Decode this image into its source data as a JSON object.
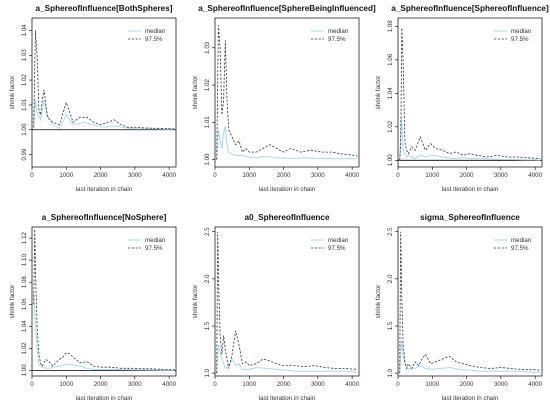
{
  "colors": {
    "median": "#a9d8ef",
    "q975": "#333333",
    "refline": "#000000",
    "frame": "#000000"
  },
  "chart_data": [
    {
      "type": "line",
      "title": "a_SphereofInfluence[BothSpheres]",
      "xlabel": "last iteration in chain",
      "ylabel": "shrink factor",
      "xlim": [
        0,
        4200
      ],
      "ylim": [
        0.985,
        1.045
      ],
      "xticks": [
        0,
        1000,
        2000,
        3000,
        4000
      ],
      "yticks": [
        0.99,
        1.0,
        1.01,
        1.02,
        1.03,
        1.04
      ],
      "ytick_labels": [
        "0.99",
        "1.00",
        "1.01",
        "1.02",
        "1.03",
        "1.04"
      ],
      "refline": 1.0,
      "legend": [
        "median",
        "97.5%"
      ],
      "series": [
        {
          "name": "median",
          "x": [
            50,
            100,
            150,
            250,
            350,
            450,
            600,
            800,
            1000,
            1200,
            1500,
            1800,
            2100,
            2400,
            2700,
            3000,
            3300,
            3600,
            3900,
            4150
          ],
          "y": [
            1.0005,
            1.012,
            1.007,
            1.004,
            1.012,
            1.006,
            1.002,
            1.0005,
            1.006,
            1.002,
            1.003,
            1.002,
            1.001,
            1.0015,
            1.0008,
            1.0004,
            1.0003,
            1.0003,
            1.0002,
            1.0002
          ]
        },
        {
          "name": "97.5%",
          "x": [
            50,
            100,
            150,
            200,
            250,
            300,
            350,
            450,
            600,
            800,
            1000,
            1200,
            1400,
            1600,
            1800,
            2000,
            2200,
            2400,
            2600,
            2800,
            3000,
            3300,
            3600,
            3900,
            4150
          ],
          "y": [
            1.001,
            1.04,
            1.03,
            1.008,
            1.006,
            1.012,
            1.016,
            1.005,
            1.003,
            1.002,
            1.011,
            1.003,
            1.005,
            1.005,
            1.003,
            1.002,
            1.003,
            1.004,
            1.002,
            1.001,
            1.001,
            1.0007,
            1.0006,
            1.0005,
            1.0004
          ]
        }
      ]
    },
    {
      "type": "line",
      "title": "a_SphereofInfluence[SphereBeingInfluenced]",
      "xlabel": "last iteration in chain",
      "ylabel": "shrink factor",
      "xlim": [
        0,
        4200
      ],
      "ylim": [
        0.998,
        1.038
      ],
      "xticks": [
        0,
        1000,
        2000,
        3000,
        4000
      ],
      "yticks": [
        1.0,
        1.01,
        1.02,
        1.03
      ],
      "ytick_labels": [
        "1.00",
        "1.01",
        "1.02",
        "1.03"
      ],
      "refline": null,
      "legend": [
        "median",
        "97.5%"
      ],
      "series": [
        {
          "name": "median",
          "x": [
            50,
            100,
            150,
            200,
            250,
            300,
            350,
            400,
            500,
            650,
            800,
            1000,
            1200,
            1400,
            1600,
            1800,
            2000,
            2300,
            2600,
            2900,
            3200,
            3500,
            3800,
            4150
          ],
          "y": [
            1.0,
            1.008,
            1.005,
            1.003,
            1.007,
            1.009,
            1.004,
            1.002,
            1.0015,
            1.001,
            1.0012,
            1.0006,
            1.0005,
            1.0008,
            1.0007,
            1.0005,
            1.0004,
            1.0003,
            1.0005,
            1.0003,
            1.0003,
            1.0002,
            1.0002,
            1.0002
          ]
        },
        {
          "name": "97.5%",
          "x": [
            50,
            100,
            150,
            200,
            250,
            300,
            350,
            400,
            500,
            600,
            700,
            800,
            900,
            1000,
            1200,
            1400,
            1600,
            1800,
            2000,
            2200,
            2500,
            2800,
            3100,
            3400,
            3700,
            4000,
            4150
          ],
          "y": [
            1.0,
            1.036,
            1.03,
            1.012,
            1.016,
            1.032,
            1.016,
            1.008,
            1.006,
            1.004,
            1.005,
            1.002,
            1.003,
            1.002,
            1.002,
            1.003,
            1.004,
            1.003,
            1.002,
            1.003,
            1.002,
            1.0025,
            1.002,
            1.002,
            1.0015,
            1.0012,
            1.001
          ]
        }
      ]
    },
    {
      "type": "line",
      "title": "a_SphereofInfluence[SphereofInfluence]",
      "xlabel": "last iteration in chain",
      "ylabel": "shrink factor",
      "xlim": [
        0,
        4200
      ],
      "ylim": [
        0.996,
        1.085
      ],
      "xticks": [
        0,
        1000,
        2000,
        3000,
        4000
      ],
      "yticks": [
        1.0,
        1.02,
        1.04,
        1.06,
        1.08
      ],
      "ytick_labels": [
        "1.00",
        "1.02",
        "1.04",
        "1.06",
        "1.08"
      ],
      "refline": 1.0,
      "legend": [
        "median",
        "97.5%"
      ],
      "series": [
        {
          "name": "median",
          "x": [
            50,
            100,
            150,
            200,
            250,
            300,
            400,
            500,
            650,
            800,
            1000,
            1300,
            1600,
            1900,
            2200,
            2500,
            2800,
            3100,
            3400,
            3700,
            4000,
            4150
          ],
          "y": [
            1.0,
            1.026,
            1.006,
            1.004,
            1.002,
            1.003,
            1.002,
            1.001,
            1.003,
            1.002,
            1.003,
            1.002,
            1.001,
            1.0015,
            1.001,
            1.001,
            1.0008,
            1.0005,
            1.0005,
            1.0003,
            1.0003,
            1.0002
          ]
        },
        {
          "name": "97.5%",
          "x": [
            50,
            80,
            110,
            150,
            200,
            250,
            300,
            400,
            500,
            650,
            800,
            950,
            1100,
            1300,
            1500,
            1700,
            1900,
            2100,
            2300,
            2600,
            2900,
            3200,
            3500,
            3800,
            4150
          ],
          "y": [
            1.0,
            1.01,
            1.079,
            1.06,
            1.011,
            1.006,
            1.004,
            1.008,
            1.006,
            1.014,
            1.006,
            1.01,
            1.007,
            1.006,
            1.004,
            1.005,
            1.003,
            1.004,
            1.003,
            1.002,
            1.003,
            1.002,
            1.002,
            1.0015,
            1.001
          ]
        }
      ]
    },
    {
      "type": "line",
      "title": "a_SphereofInfluence[NoSphere]",
      "xlabel": "last iteration in chain",
      "ylabel": "shrink factor",
      "xlim": [
        0,
        4200
      ],
      "ylim": [
        0.995,
        1.13
      ],
      "xticks": [
        0,
        1000,
        2000,
        3000,
        4000
      ],
      "yticks": [
        1.0,
        1.02,
        1.04,
        1.06,
        1.08,
        1.1,
        1.12
      ],
      "ytick_labels": [
        "1.00",
        "1.02",
        "1.04",
        "1.06",
        "1.08",
        "1.10",
        "1.12"
      ],
      "refline": 1.0,
      "legend": [
        "median",
        "97.5%"
      ],
      "series": [
        {
          "name": "median",
          "x": [
            50,
            100,
            150,
            200,
            300,
            400,
            500,
            600,
            800,
            1000,
            1200,
            1400,
            1600,
            1800,
            2100,
            2400,
            2700,
            3000,
            3300,
            3600,
            3900,
            4150
          ],
          "y": [
            1.07,
            1.04,
            1.02,
            1.005,
            1.003,
            1.002,
            1.002,
            1.003,
            1.004,
            1.006,
            1.005,
            1.004,
            1.002,
            1.001,
            1.001,
            1.001,
            1.0008,
            1.0006,
            1.0005,
            1.0004,
            1.0003,
            1.0002
          ]
        },
        {
          "name": "97.5%",
          "x": [
            50,
            80,
            110,
            150,
            200,
            250,
            300,
            400,
            500,
            600,
            700,
            800,
            900,
            1000,
            1100,
            1200,
            1400,
            1600,
            1800,
            2000,
            2300,
            2600,
            2900,
            3200,
            3500,
            3800,
            4150
          ],
          "y": [
            1.06,
            1.128,
            1.08,
            1.04,
            1.015,
            1.006,
            1.004,
            1.01,
            1.008,
            1.004,
            1.007,
            1.01,
            1.012,
            1.016,
            1.015,
            1.012,
            1.007,
            1.008,
            1.004,
            1.003,
            1.003,
            1.002,
            1.002,
            1.0015,
            1.0015,
            1.001,
            1.001
          ]
        }
      ]
    },
    {
      "type": "line",
      "title": "a0_SphereofInfluence",
      "xlabel": "last iteration in chain",
      "ylabel": "shrink factor",
      "xlim": [
        0,
        4200
      ],
      "ylim": [
        0.97,
        2.55
      ],
      "xticks": [
        0,
        1000,
        2000,
        3000,
        4000
      ],
      "yticks": [
        1.0,
        1.5,
        2.0,
        2.5
      ],
      "ytick_labels": [
        "1.0",
        "1.5",
        "2.0",
        "2.5"
      ],
      "refline": null,
      "legend": [
        "median",
        "97.5%"
      ],
      "series": [
        {
          "name": "median",
          "x": [
            50,
            100,
            150,
            200,
            300,
            400,
            500,
            600,
            700,
            800,
            1000,
            1200,
            1500,
            1800,
            2100,
            2400,
            2700,
            3000,
            3300,
            3600,
            3900,
            4150
          ],
          "y": [
            1.0,
            1.3,
            1.22,
            1.15,
            1.05,
            1.08,
            1.15,
            1.08,
            1.1,
            1.04,
            1.04,
            1.06,
            1.05,
            1.04,
            1.03,
            1.02,
            1.02,
            1.02,
            1.02,
            1.02,
            1.02,
            1.01
          ]
        },
        {
          "name": "97.5%",
          "x": [
            50,
            80,
            110,
            150,
            200,
            250,
            300,
            400,
            500,
            600,
            700,
            800,
            900,
            1000,
            1200,
            1400,
            1600,
            1800,
            2000,
            2300,
            2600,
            2900,
            3200,
            3500,
            3800,
            4150
          ],
          "y": [
            1.0,
            2.5,
            1.9,
            1.4,
            1.2,
            1.4,
            1.25,
            1.05,
            1.2,
            1.45,
            1.3,
            1.1,
            1.12,
            1.08,
            1.1,
            1.15,
            1.13,
            1.1,
            1.08,
            1.08,
            1.07,
            1.08,
            1.06,
            1.05,
            1.05,
            1.04
          ]
        }
      ]
    },
    {
      "type": "line",
      "title": "sigma_SphereofInfluence",
      "xlabel": "last iteration in chain",
      "ylabel": "shrink factor",
      "xlim": [
        0,
        4200
      ],
      "ylim": [
        0.97,
        2.55
      ],
      "xticks": [
        0,
        1000,
        2000,
        3000,
        4000
      ],
      "yticks": [
        1.0,
        1.5,
        2.0,
        2.5
      ],
      "ytick_labels": [
        "1.0",
        "1.5",
        "2.0",
        "2.5"
      ],
      "refline": null,
      "legend": [
        "median",
        "97.5%"
      ],
      "series": [
        {
          "name": "median",
          "x": [
            50,
            100,
            150,
            200,
            300,
            400,
            500,
            650,
            800,
            1000,
            1200,
            1500,
            1800,
            2100,
            2400,
            2700,
            3000,
            3300,
            3600,
            3900,
            4150
          ],
          "y": [
            1.0,
            1.35,
            1.2,
            1.1,
            1.04,
            1.06,
            1.05,
            1.08,
            1.05,
            1.04,
            1.05,
            1.06,
            1.04,
            1.03,
            1.02,
            1.02,
            1.02,
            1.02,
            1.02,
            1.01,
            1.01
          ]
        },
        {
          "name": "97.5%",
          "x": [
            50,
            80,
            110,
            150,
            200,
            250,
            300,
            400,
            500,
            600,
            700,
            800,
            950,
            1100,
            1300,
            1500,
            1700,
            1900,
            2100,
            2400,
            2700,
            3000,
            3300,
            3600,
            3900,
            4150
          ],
          "y": [
            1.0,
            2.5,
            1.8,
            1.3,
            1.12,
            1.05,
            1.1,
            1.05,
            1.12,
            1.08,
            1.15,
            1.2,
            1.1,
            1.12,
            1.15,
            1.18,
            1.12,
            1.1,
            1.08,
            1.06,
            1.05,
            1.06,
            1.05,
            1.04,
            1.04,
            1.03
          ]
        }
      ]
    }
  ]
}
